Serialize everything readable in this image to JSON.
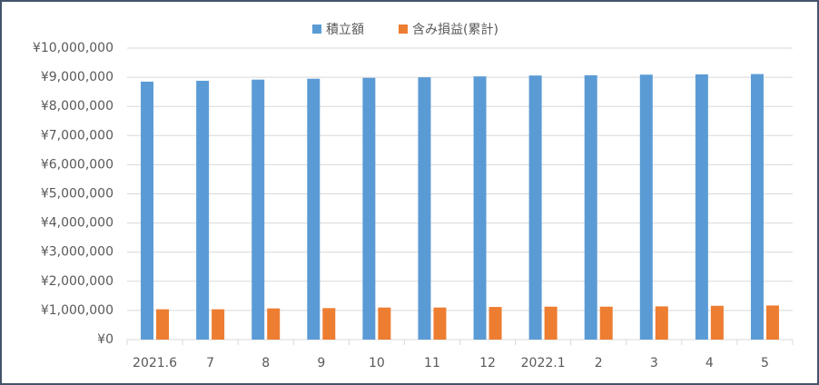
{
  "chart_data": {
    "type": "bar",
    "categories": [
      "2021.6",
      "7",
      "8",
      "9",
      "10",
      "11",
      "12",
      "2022.1",
      "2",
      "3",
      "4",
      "5"
    ],
    "series": [
      {
        "name": "積立額",
        "color": "#5b9bd5",
        "values": [
          8850000,
          8880000,
          8920000,
          8950000,
          8980000,
          9000000,
          9030000,
          9060000,
          9070000,
          9090000,
          9100000,
          9110000
        ]
      },
      {
        "name": "含み損益(累計)",
        "color": "#ed7d31",
        "values": [
          1040000,
          1040000,
          1070000,
          1080000,
          1100000,
          1100000,
          1120000,
          1130000,
          1130000,
          1140000,
          1160000,
          1170000
        ]
      }
    ],
    "ylim": [
      0,
      10000000
    ],
    "yticks": [
      {
        "value": 0,
        "label": "¥0"
      },
      {
        "value": 1000000,
        "label": "¥1,000,000"
      },
      {
        "value": 2000000,
        "label": "¥2,000,000"
      },
      {
        "value": 3000000,
        "label": "¥3,000,000"
      },
      {
        "value": 4000000,
        "label": "¥4,000,000"
      },
      {
        "value": 5000000,
        "label": "¥5,000,000"
      },
      {
        "value": 6000000,
        "label": "¥6,000,000"
      },
      {
        "value": 7000000,
        "label": "¥7,000,000"
      },
      {
        "value": 8000000,
        "label": "¥8,000,000"
      },
      {
        "value": 9000000,
        "label": "¥9,000,000"
      },
      {
        "value": 10000000,
        "label": "¥10,000,000"
      }
    ],
    "grid": true,
    "legend": "top"
  }
}
